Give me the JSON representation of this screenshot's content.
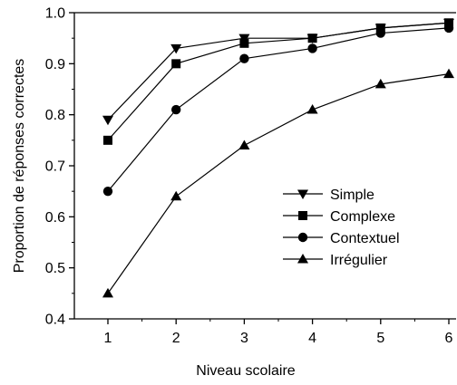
{
  "chart_data": {
    "type": "line",
    "title": "",
    "xlabel": "Niveau scolaire",
    "ylabel": "Proportion de réponses correctes",
    "x": [
      1,
      2,
      3,
      4,
      5,
      6
    ],
    "xlim": [
      0.5,
      6
    ],
    "ylim": [
      0.4,
      1.0
    ],
    "x_ticks": [
      "1",
      "2",
      "3",
      "4",
      "5",
      "6"
    ],
    "y_ticks": [
      "0.4",
      "0.5",
      "0.6",
      "0.7",
      "0.8",
      "0.9",
      "1.0"
    ],
    "grid": false,
    "legend_position": "center-right",
    "series": [
      {
        "name": "Simple",
        "marker": "triangle-down",
        "values": [
          0.79,
          0.93,
          0.95,
          0.95,
          0.97,
          0.98
        ]
      },
      {
        "name": "Complexe",
        "marker": "square",
        "values": [
          0.75,
          0.9,
          0.94,
          0.95,
          0.97,
          0.98
        ]
      },
      {
        "name": "Contextuel",
        "marker": "circle",
        "values": [
          0.65,
          0.81,
          0.91,
          0.93,
          0.96,
          0.97
        ]
      },
      {
        "name": "Irrégulier",
        "marker": "triangle-up",
        "values": [
          0.45,
          0.64,
          0.74,
          0.81,
          0.86,
          0.88
        ]
      }
    ],
    "colors": {
      "line": "#000000",
      "marker": "#000000"
    }
  }
}
